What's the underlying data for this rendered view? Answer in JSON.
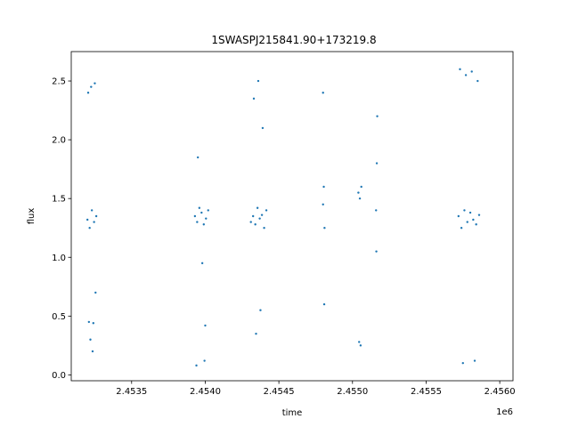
{
  "chart_data": {
    "type": "scatter",
    "title": "1SWASPJ215841.90+173219.8",
    "xlabel": "time",
    "ylabel": "flux",
    "x_offset_label": "1e6",
    "xlim": [
      2453090,
      2456090
    ],
    "ylim": [
      -0.05,
      2.75
    ],
    "x_ticks": [
      2.4535,
      2.454,
      2.4545,
      2.455,
      2.4555,
      2.456
    ],
    "x_tick_labels": [
      "2.4535",
      "2.4540",
      "2.4545",
      "2.4550",
      "2.4555",
      "2.4560"
    ],
    "y_ticks": [
      0.0,
      0.5,
      1.0,
      1.5,
      2.0,
      2.5
    ],
    "y_tick_labels": [
      "0.0",
      "0.5",
      "1.0",
      "1.5",
      "2.0",
      "2.5"
    ],
    "grid": false,
    "marker_color": "#1f77b4",
    "series": [
      {
        "x": [
          2453200,
          2453215,
          2453230,
          2453245,
          2453260,
          2453205,
          2453225,
          2453250,
          2453210,
          2453240,
          2453220,
          2453235,
          2453255
        ],
        "y": [
          1.32,
          1.25,
          1.4,
          1.3,
          1.35,
          2.4,
          2.45,
          2.48,
          0.45,
          0.44,
          0.3,
          0.2,
          0.7
        ]
      },
      {
        "x": [
          2453930,
          2453945,
          2453960,
          2453975,
          2453990,
          2454005,
          2454020,
          2453950,
          2453980,
          2454000,
          2453940,
          2453995
        ],
        "y": [
          1.35,
          1.3,
          1.42,
          1.38,
          1.28,
          1.33,
          1.4,
          1.85,
          0.95,
          0.42,
          0.08,
          0.12
        ]
      },
      {
        "x": [
          2454310,
          2454325,
          2454340,
          2454355,
          2454370,
          2454385,
          2454400,
          2454415,
          2454330,
          2454360,
          2454390,
          2454345,
          2454375
        ],
        "y": [
          1.3,
          1.35,
          1.28,
          1.42,
          1.33,
          1.36,
          1.25,
          1.4,
          2.35,
          2.5,
          2.1,
          0.35,
          0.55
        ]
      },
      {
        "x": [
          2454800,
          2454805,
          2454810,
          2454800,
          2454808
        ],
        "y": [
          1.45,
          1.6,
          1.25,
          2.4,
          0.6
        ]
      },
      {
        "x": [
          2455040,
          2455050,
          2455060,
          2455045,
          2455055,
          2455160,
          2455165,
          2455168,
          2455162
        ],
        "y": [
          1.55,
          1.5,
          1.6,
          0.28,
          0.25,
          1.4,
          1.8,
          2.2,
          1.05
        ]
      },
      {
        "x": [
          2455720,
          2455740,
          2455760,
          2455780,
          2455800,
          2455820,
          2455840,
          2455860,
          2455730,
          2455770,
          2455810,
          2455850,
          2455750,
          2455830
        ],
        "y": [
          1.35,
          1.25,
          1.4,
          1.3,
          1.38,
          1.32,
          1.28,
          1.36,
          2.6,
          2.55,
          2.58,
          2.5,
          0.1,
          0.12
        ]
      }
    ]
  }
}
